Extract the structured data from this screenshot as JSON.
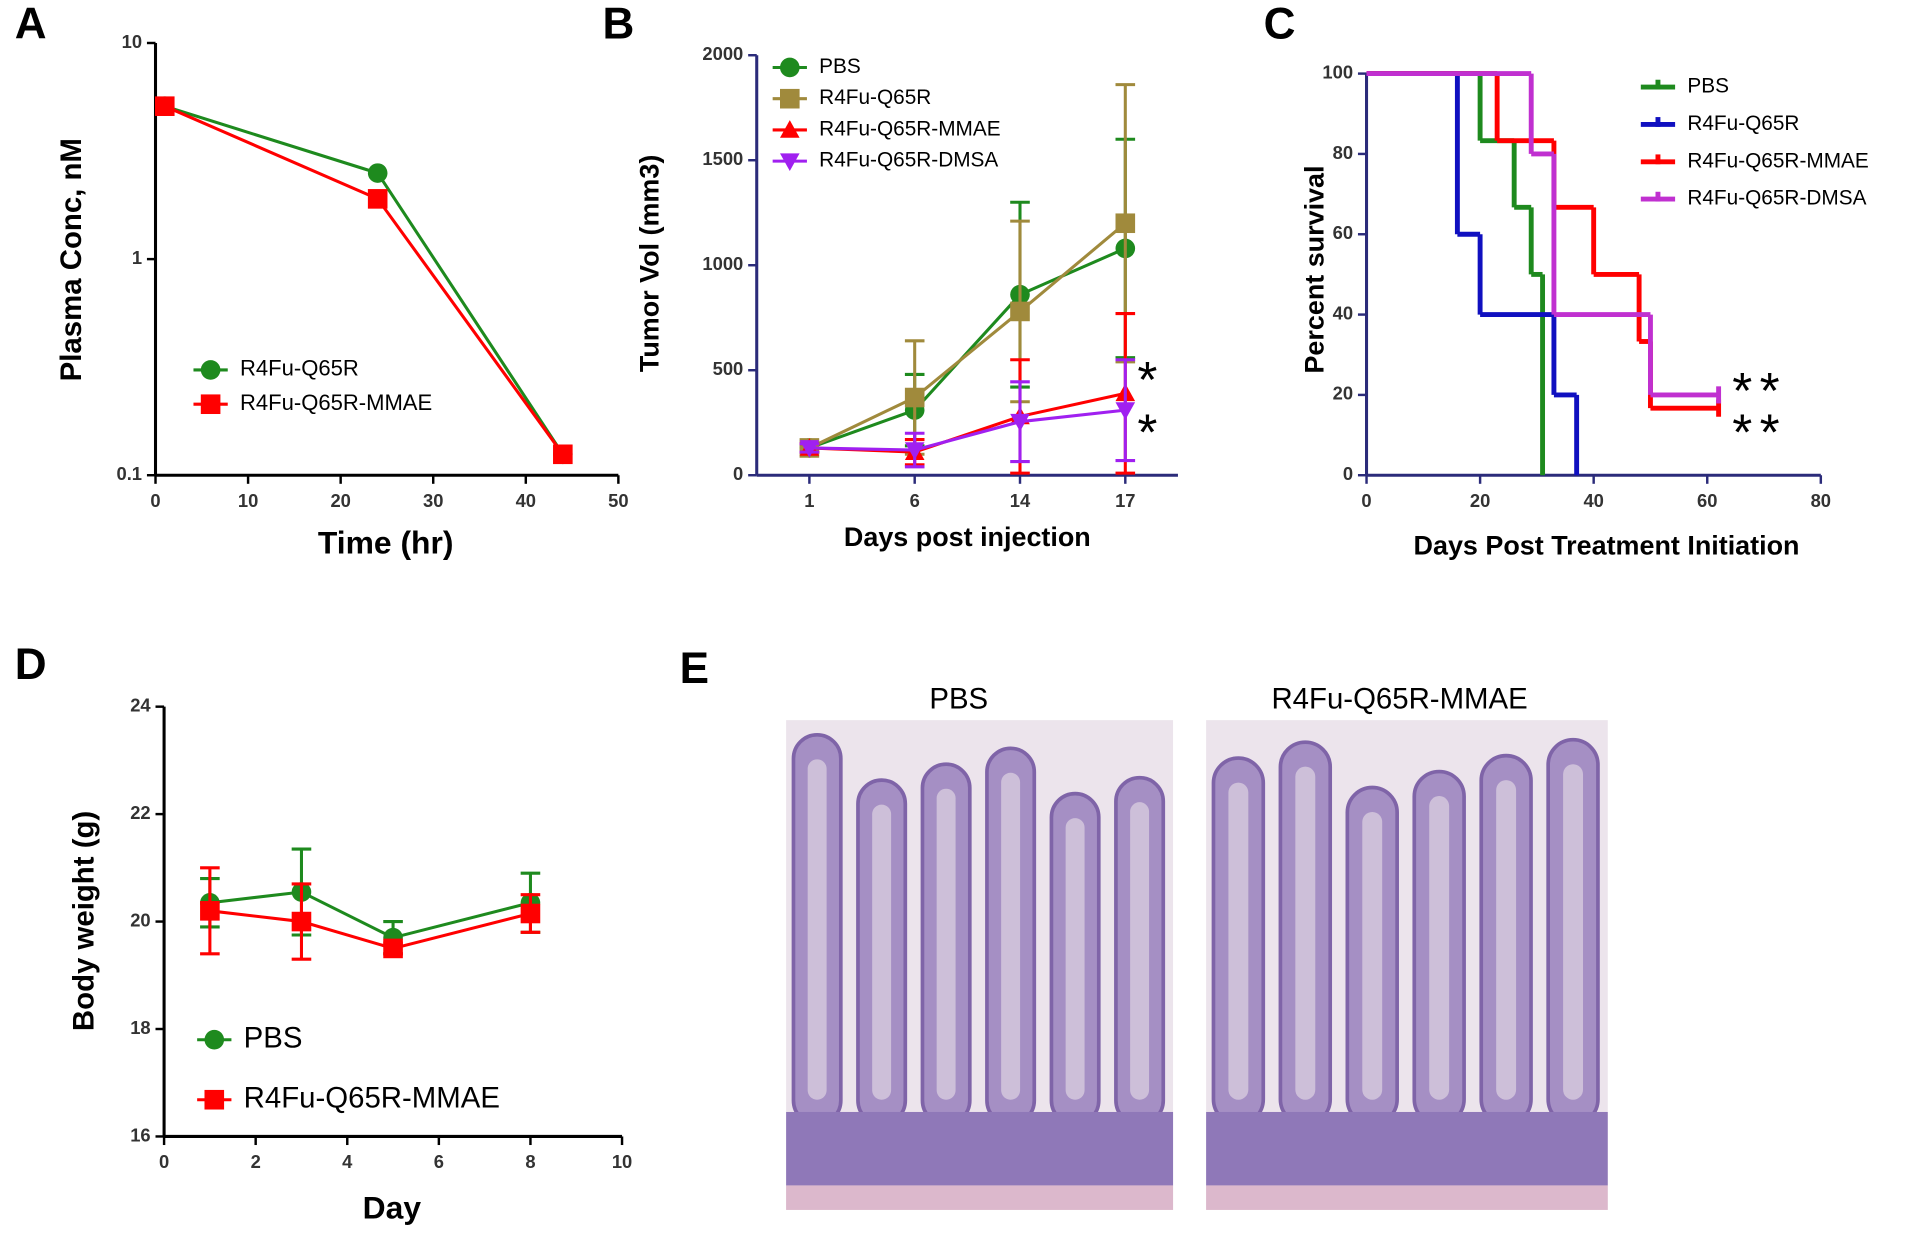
{
  "chart_data": [
    {
      "panel": "A",
      "type": "line",
      "xlabel": "Time (hr)",
      "ylabel": "Plasma Conc, nM",
      "log_y": true,
      "xlim": [
        0,
        50
      ],
      "xticks": [
        0,
        10,
        20,
        30,
        40,
        50
      ],
      "ylim": [
        0.1,
        10
      ],
      "yticks": [
        0.1,
        1,
        10
      ],
      "legend": "lower left",
      "x": [
        1,
        24,
        44
      ],
      "series": [
        {
          "name": "R4Fu-Q65R",
          "color": "#1e8a1e",
          "marker": "circle",
          "values": [
            5.1,
            2.5,
            0.125
          ]
        },
        {
          "name": "R4Fu-Q65R-MMAE",
          "color": "#ff0000",
          "marker": "square",
          "values": [
            5.1,
            1.9,
            0.125
          ]
        }
      ]
    },
    {
      "panel": "B",
      "type": "line",
      "xlabel": "Days post injection",
      "ylabel": "Tumor Vol (mm3)",
      "categories": [
        "1",
        "6",
        "14",
        "17"
      ],
      "ylim": [
        0,
        2000
      ],
      "yticks": [
        0,
        500,
        1000,
        1500,
        2000
      ],
      "legend": "upper left",
      "annotations": [
        "*",
        "*"
      ],
      "series": [
        {
          "name": "PBS",
          "color": "#1e8a1e",
          "marker": "circle",
          "values": [
            130,
            310,
            860,
            1080
          ],
          "errors": [
            20,
            170,
            440,
            520
          ]
        },
        {
          "name": "R4Fu-Q65R",
          "color": "#a08a3c",
          "marker": "square",
          "values": [
            130,
            370,
            780,
            1200
          ],
          "errors": [
            20,
            270,
            430,
            660
          ]
        },
        {
          "name": "R4Fu-Q65R-MMAE",
          "color": "#ff0000",
          "marker": "triangle",
          "values": [
            130,
            110,
            280,
            390
          ],
          "errors": [
            20,
            60,
            270,
            380
          ]
        },
        {
          "name": "R4Fu-Q65R-DMSA",
          "color": "#a020f0",
          "marker": "triangle-down",
          "values": [
            130,
            120,
            255,
            310
          ],
          "errors": [
            20,
            80,
            190,
            240
          ]
        }
      ]
    },
    {
      "panel": "C",
      "type": "step",
      "xlabel": "Days Post Treatment Initiation",
      "ylabel": "Percent survival",
      "xlim": [
        0,
        80
      ],
      "xticks": [
        0,
        20,
        40,
        60,
        80
      ],
      "ylim": [
        0,
        100
      ],
      "yticks": [
        0,
        20,
        40,
        60,
        80,
        100
      ],
      "legend": "upper right",
      "annotations": [
        "**",
        "**"
      ],
      "series": [
        {
          "name": "PBS",
          "color": "#1e8a1e",
          "x": [
            0,
            20,
            26,
            29,
            31
          ],
          "values": [
            100,
            83.3,
            66.7,
            50,
            0
          ]
        },
        {
          "name": "R4Fu-Q65R",
          "color": "#1010c0",
          "x": [
            0,
            16,
            20,
            33,
            37
          ],
          "values": [
            100,
            60,
            40,
            20,
            0
          ]
        },
        {
          "name": "R4Fu-Q65R-MMAE",
          "color": "#ff0000",
          "x": [
            0,
            23,
            33,
            40,
            48,
            50,
            62
          ],
          "values": [
            100,
            83.3,
            66.7,
            50,
            33.3,
            16.7,
            16.7
          ]
        },
        {
          "name": "R4Fu-Q65R-DMSA",
          "color": "#c030d0",
          "x": [
            0,
            29,
            33,
            50,
            62
          ],
          "values": [
            100,
            80,
            40,
            20,
            20
          ]
        }
      ]
    },
    {
      "panel": "D",
      "type": "line",
      "xlabel": "Day",
      "ylabel": "Body weight (g)",
      "xlim": [
        0,
        10
      ],
      "xticks": [
        0,
        2,
        4,
        6,
        8,
        10
      ],
      "ylim": [
        16,
        24
      ],
      "yticks": [
        16,
        18,
        20,
        22,
        24
      ],
      "legend": "lower left",
      "x": [
        1,
        3,
        5,
        8
      ],
      "series": [
        {
          "name": "PBS",
          "color": "#1e8a1e",
          "marker": "circle",
          "values": [
            20.35,
            20.55,
            19.7,
            20.35
          ],
          "errors": [
            0.45,
            0.8,
            0.3,
            0.55
          ]
        },
        {
          "name": "R4Fu-Q65R-MMAE",
          "color": "#ff0000",
          "marker": "square",
          "values": [
            20.2,
            20.0,
            19.5,
            20.15
          ],
          "errors": [
            0.8,
            0.7,
            0.1,
            0.35
          ]
        }
      ]
    }
  ],
  "panel_e": {
    "panel": "E",
    "labels": [
      "PBS",
      "R4Fu-Q65R-MMAE"
    ]
  }
}
